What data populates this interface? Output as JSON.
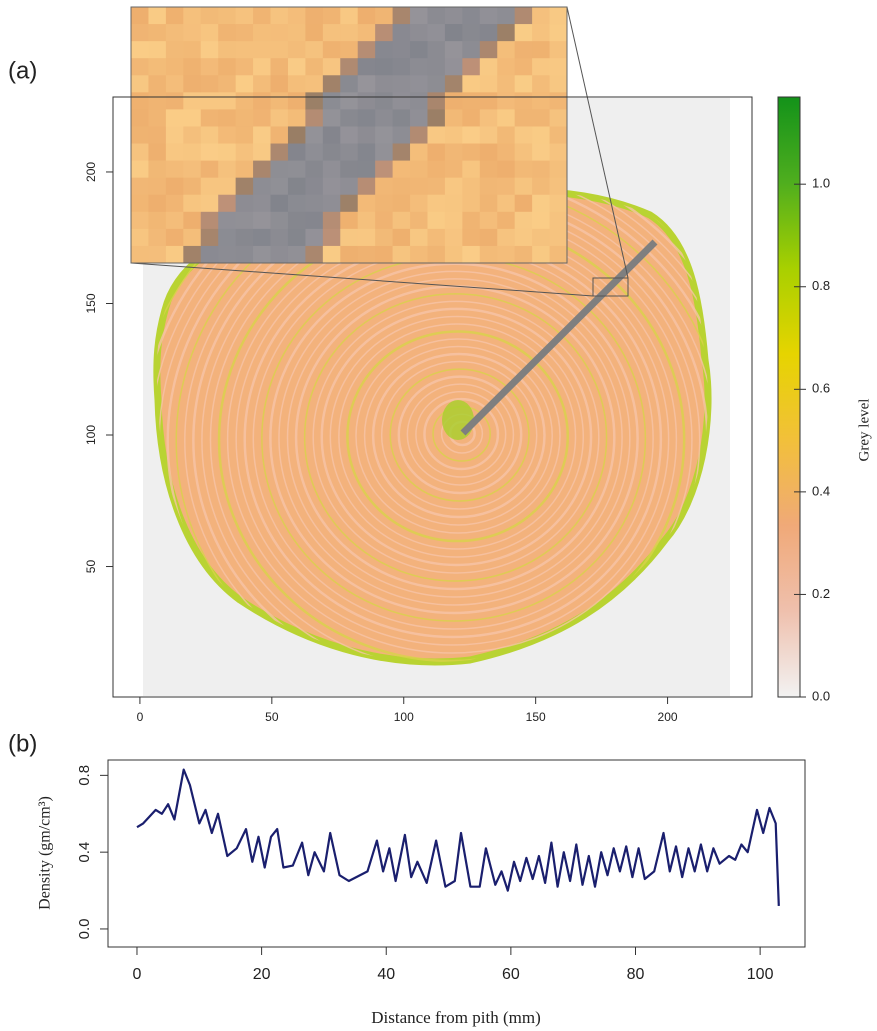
{
  "chart_data": [
    {
      "type": "image",
      "panel_label": "(a)",
      "xlim": [
        -10.2,
        232
      ],
      "xticks": [
        0,
        50,
        100,
        150,
        200
      ],
      "ylim": [
        0.4,
        228.5
      ],
      "yticks": [
        50,
        100,
        150,
        200
      ],
      "colorbar": {
        "label": "Grey level",
        "lim": [
          0,
          1.17
        ],
        "ticks": [
          {
            "value": 0,
            "label": "0.0"
          },
          0.2,
          0.4,
          0.6,
          0.8,
          {
            "value": 1,
            "label": "1.0"
          }
        ],
        "colors": [
          "#f2f2f2",
          "#efc0ad",
          "#f0a978",
          "#f2c03a",
          "#e6d400",
          "#a8d000",
          "#4fae1e",
          "#13921a"
        ]
      }
    },
    {
      "type": "line",
      "panel_label": "(b)",
      "xlabel": "Distance from pith (mm)",
      "ylabel": "Density (gm/cm³)",
      "color": "#1a1f6e",
      "xlim": [
        -4.65,
        107.2
      ],
      "xticks": [
        0,
        20,
        40,
        60,
        80,
        100
      ],
      "ylim": [
        -0.094,
        0.88
      ],
      "yticks": [
        {
          "value": 0,
          "label": "0.0"
        },
        0.4,
        0.8
      ],
      "x": [
        0,
        1,
        3,
        4,
        5,
        6,
        7.5,
        8.5,
        10,
        11,
        12,
        13,
        14.5,
        16,
        17.5,
        18.5,
        19.5,
        20.5,
        21.5,
        22.5,
        23.5,
        25,
        26.5,
        27.5,
        28.5,
        30,
        31,
        32.5,
        34,
        37,
        38.5,
        39.5,
        40.5,
        41.5,
        43,
        44,
        45,
        46.5,
        48,
        49.5,
        51,
        52,
        53.5,
        55,
        56,
        57.5,
        58.5,
        59.5,
        60.5,
        61.5,
        62.5,
        63.5,
        64.5,
        65.5,
        66.5,
        67.5,
        68.5,
        69.5,
        70.5,
        71.5,
        72.5,
        73.5,
        74.5,
        75.5,
        76.5,
        77.5,
        78.5,
        79.5,
        80.5,
        81.5,
        83,
        84.5,
        85.5,
        86.5,
        87.5,
        88.5,
        89.5,
        90.5,
        91.5,
        92.5,
        93.5,
        95,
        96,
        97,
        98,
        99.5,
        100.5,
        101.5,
        102.5,
        103
      ],
      "values": [
        0.53,
        0.55,
        0.62,
        0.6,
        0.65,
        0.57,
        0.83,
        0.75,
        0.55,
        0.62,
        0.5,
        0.6,
        0.38,
        0.42,
        0.52,
        0.35,
        0.48,
        0.32,
        0.48,
        0.52,
        0.32,
        0.33,
        0.45,
        0.28,
        0.4,
        0.3,
        0.5,
        0.28,
        0.25,
        0.3,
        0.46,
        0.3,
        0.42,
        0.25,
        0.49,
        0.27,
        0.35,
        0.24,
        0.46,
        0.22,
        0.25,
        0.5,
        0.22,
        0.22,
        0.42,
        0.23,
        0.3,
        0.2,
        0.35,
        0.25,
        0.37,
        0.26,
        0.38,
        0.24,
        0.45,
        0.22,
        0.4,
        0.25,
        0.44,
        0.23,
        0.38,
        0.22,
        0.4,
        0.28,
        0.42,
        0.3,
        0.43,
        0.27,
        0.42,
        0.26,
        0.3,
        0.5,
        0.3,
        0.43,
        0.27,
        0.42,
        0.3,
        0.44,
        0.3,
        0.42,
        0.34,
        0.38,
        0.36,
        0.44,
        0.4,
        0.62,
        0.5,
        0.63,
        0.55,
        0.12
      ]
    }
  ]
}
